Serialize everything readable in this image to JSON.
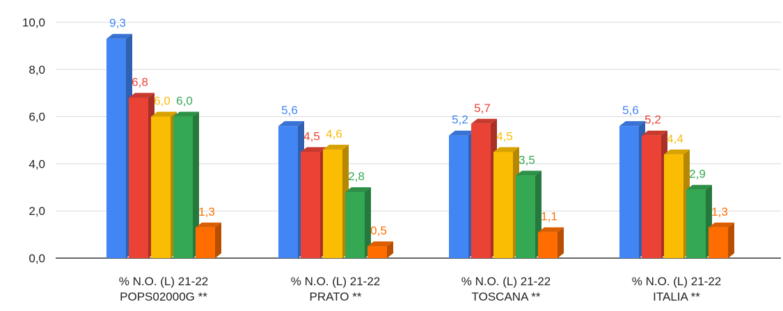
{
  "chart_data": {
    "type": "bar",
    "variant": "3d-clustered-column",
    "title": "",
    "xlabel": "",
    "ylabel": "",
    "ylim": [
      0,
      10
    ],
    "y_ticks": [
      "0,0",
      "2,0",
      "4,0",
      "6,0",
      "8,0",
      "10,0"
    ],
    "y_tick_values": [
      0,
      2,
      4,
      6,
      8,
      10
    ],
    "grid": true,
    "legend": "none",
    "categories": [
      [
        "% N.O. (L) 21-22",
        "POPS02000G **"
      ],
      [
        "% N.O. (L) 21-22",
        "PRATO **"
      ],
      [
        "% N.O. (L) 21-22",
        "TOSCANA  **"
      ],
      [
        "% N.O. (L) 21-22",
        "ITALIA **"
      ]
    ],
    "series": [
      {
        "color": "#4285f4",
        "values": [
          9.3,
          5.6,
          5.2,
          5.6
        ],
        "labels": [
          "9,3",
          "5,6",
          "5,2",
          "5,6"
        ]
      },
      {
        "color": "#ea4335",
        "values": [
          6.8,
          4.5,
          5.7,
          5.2
        ],
        "labels": [
          "6,8",
          "4,5",
          "5,7",
          "5,2"
        ]
      },
      {
        "color": "#fbbc04",
        "values": [
          6.0,
          4.6,
          4.5,
          4.4
        ],
        "labels": [
          "6,0",
          "4,6",
          "4,5",
          "4,4"
        ]
      },
      {
        "color": "#34a853",
        "values": [
          6.0,
          2.8,
          3.5,
          2.9
        ],
        "labels": [
          "6,0",
          "2,8",
          "3,5",
          "2,9"
        ]
      },
      {
        "color": "#ff6d01",
        "values": [
          1.3,
          0.5,
          1.1,
          1.3
        ],
        "labels": [
          "1,3",
          "0,5",
          "1,1",
          "1,3"
        ]
      }
    ]
  }
}
